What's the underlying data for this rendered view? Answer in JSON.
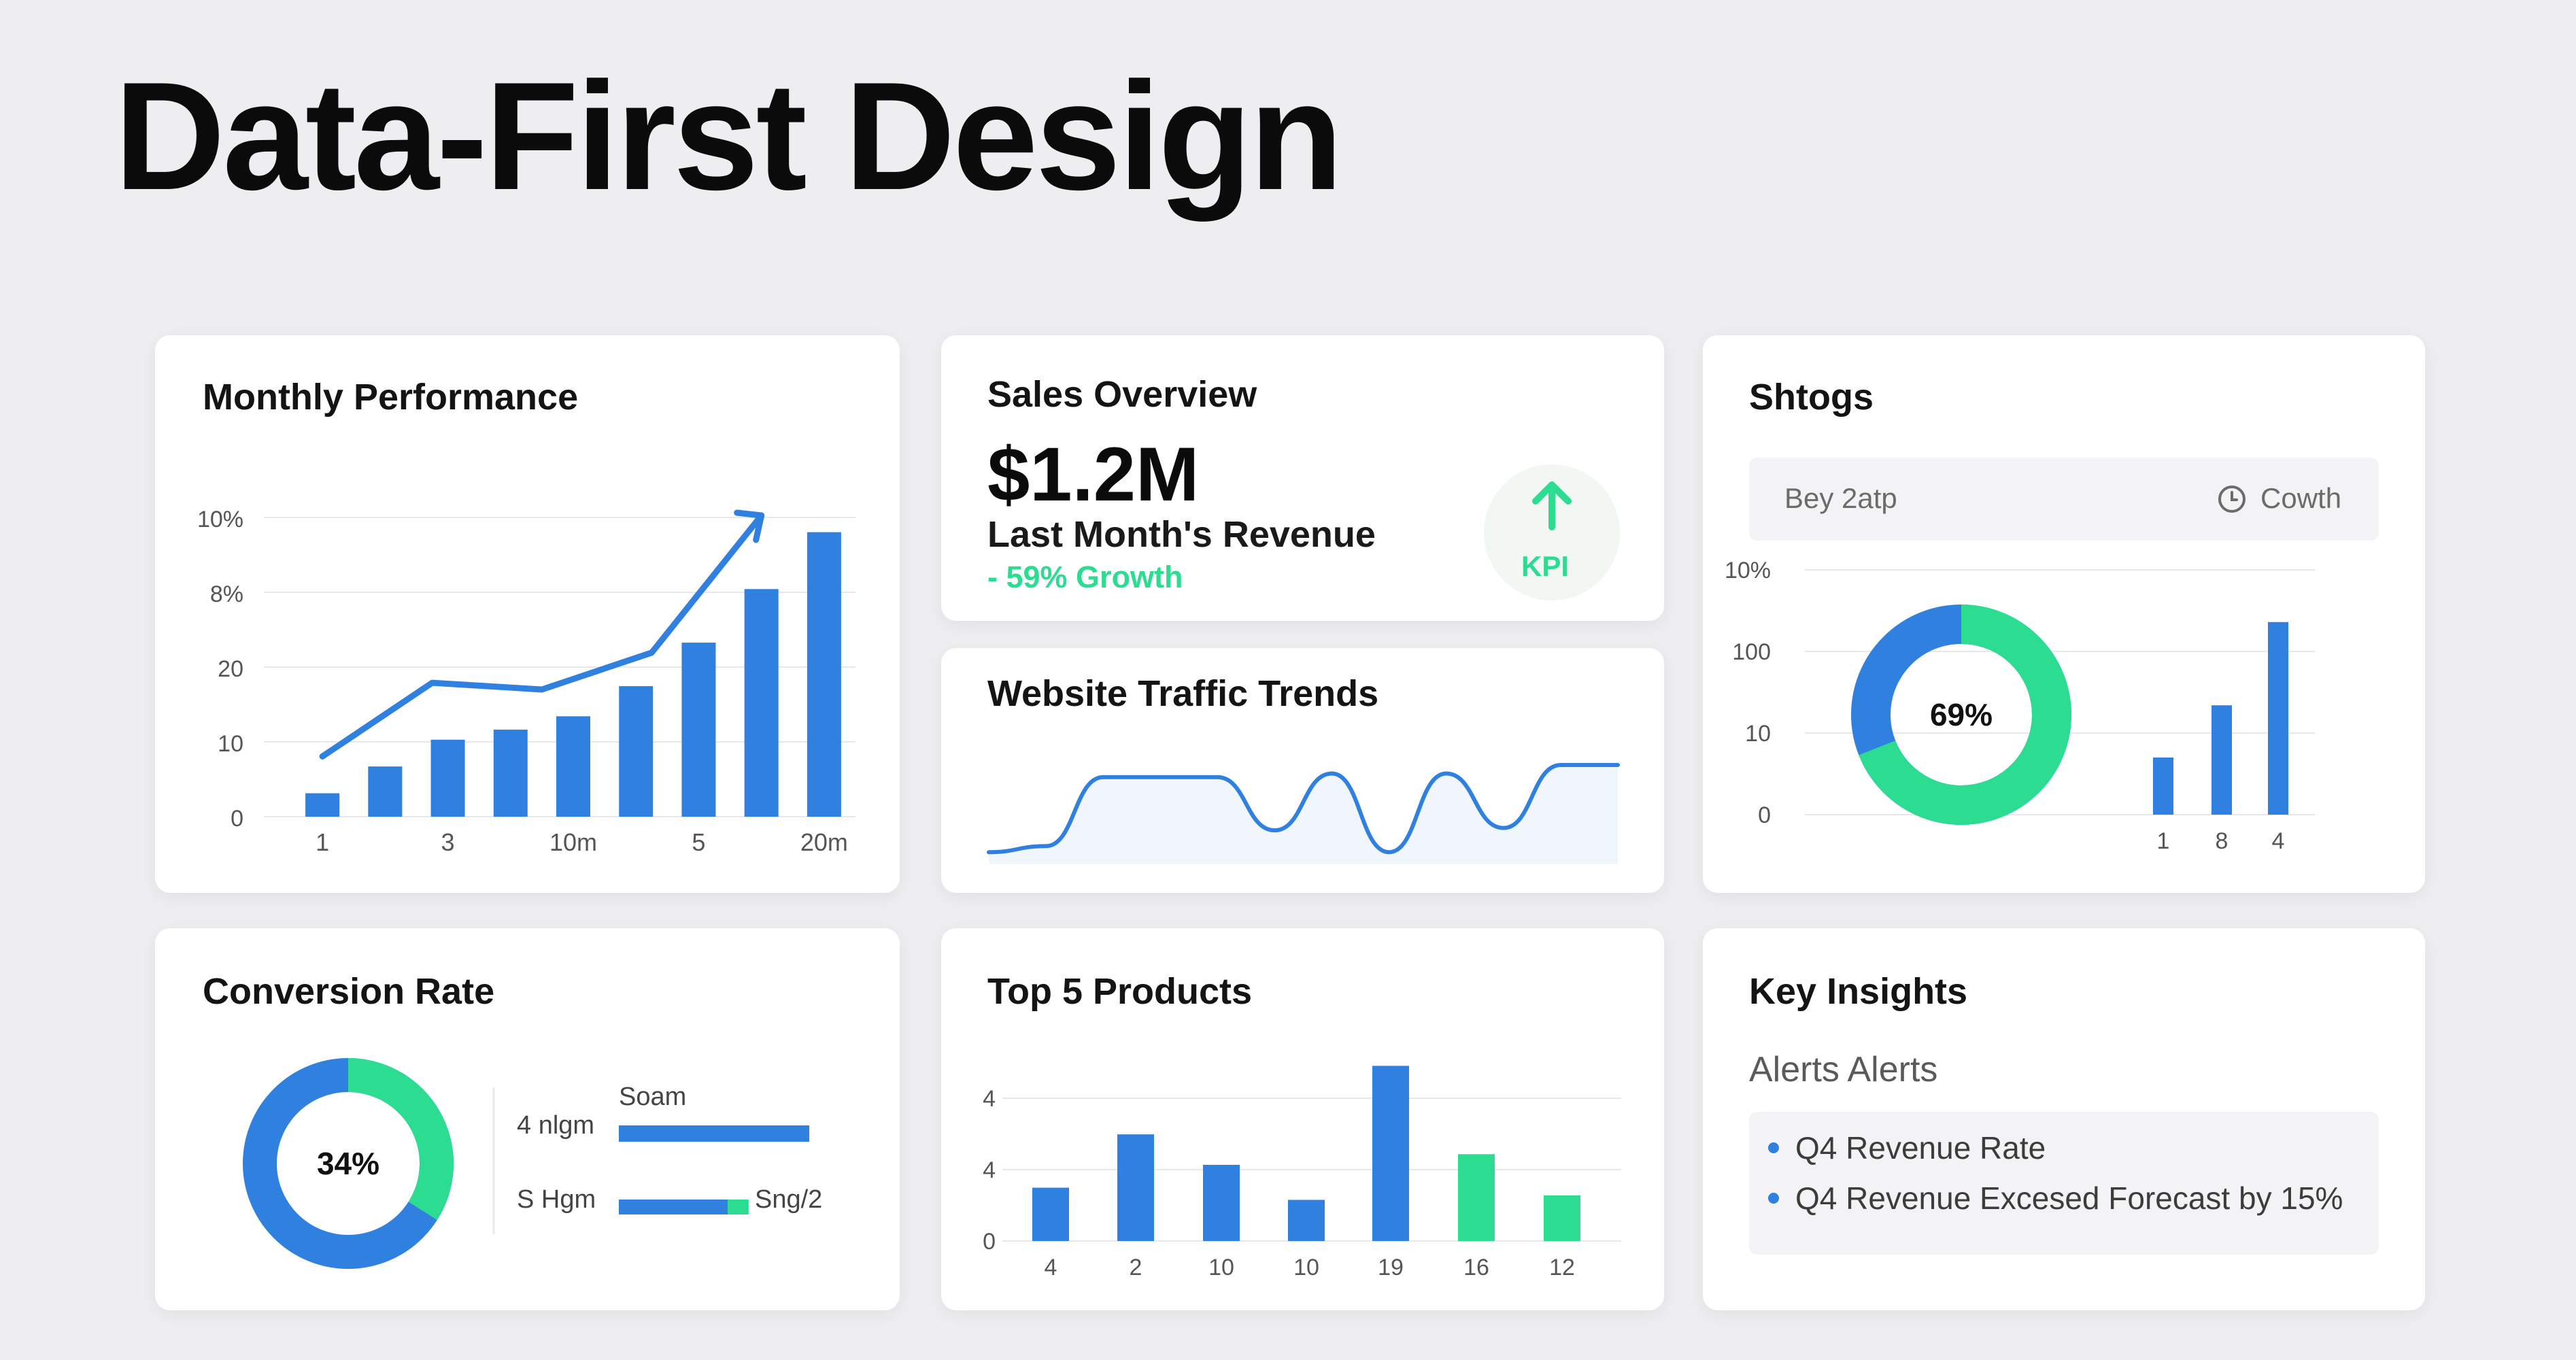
{
  "page": {
    "title": "Data-First Design"
  },
  "colors": {
    "blue": "#2f80df",
    "green": "#2bdc91",
    "grid": "#e8e8ec",
    "background": "#eeeef0"
  },
  "monthly": {
    "title": "Monthly Performance",
    "y_ticks": [
      "0",
      "10",
      "20",
      "8%",
      "10%"
    ],
    "x_ticks": [
      "1",
      "3",
      "10m",
      "5",
      "20m"
    ],
    "chart_data": {
      "type": "bar",
      "bar_values": [
        0.35,
        0.75,
        1.15,
        1.3,
        1.5,
        1.95,
        2.6,
        3.4,
        4.25
      ],
      "trend_values": [
        0.9,
        2.0,
        1.9,
        2.45,
        4.5
      ],
      "ylim": [
        0,
        4.5
      ]
    },
    "trend_icon": "arrow-up-right-icon"
  },
  "sales": {
    "title": "Sales Overview",
    "value": "$1.2M",
    "subtitle": "Last Month's Revenue",
    "growth": "- 59% Growth",
    "badge_label": "KPI",
    "badge_icon": "arrow-up-icon"
  },
  "traffic": {
    "title": "Website Traffic Trends",
    "chart_data": {
      "type": "line",
      "values": [
        0.1,
        0.15,
        0.72,
        0.72,
        0.72,
        0.28,
        0.75,
        0.1,
        0.75,
        0.3,
        0.82,
        0.82
      ]
    }
  },
  "shtogs": {
    "title": "Shtogs",
    "dropdown_label": "Bey 2atp",
    "dropdown_right_label": "Cowth",
    "dropdown_icon": "clock-icon",
    "y_ticks": [
      "0",
      "10",
      "100",
      "10%"
    ],
    "x_ticks": [
      "1",
      "8",
      "4"
    ],
    "donut_label": "69%",
    "donut_value": 0.69,
    "chart_data": {
      "type": "bar",
      "values": [
        0.35,
        0.67,
        1.18
      ],
      "ylim": [
        0,
        1.5
      ]
    }
  },
  "conversion": {
    "title": "Conversion Rate",
    "donut_label": "34%",
    "donut_value": 0.34,
    "legend_top_label": "Soam",
    "row1_label": "4 nlgm",
    "row2_label": "S Hgm",
    "row2_right_label": "Sng/2",
    "row1_fill": 1.0,
    "row2_fill": 0.6,
    "row2_green_fill": 0.11
  },
  "products": {
    "title": "Top 5 Products",
    "y_ticks": [
      "0",
      "4",
      "4"
    ],
    "chart_data": {
      "type": "bar",
      "categories": [
        "4",
        "2",
        "10",
        "10",
        "19",
        "16",
        "12"
      ],
      "values": [
        0.35,
        0.7,
        0.5,
        0.27,
        1.15,
        0.57,
        0.3
      ],
      "highlight": [
        false,
        false,
        false,
        false,
        false,
        true,
        true
      ],
      "ylim": [
        0,
        1.25
      ]
    }
  },
  "insights": {
    "title": "Key Insights",
    "subtitle": "Alerts Alerts",
    "items": [
      "Q4 Revenue Rate",
      "Q4 Revenue Excesed Forecast by 15%"
    ]
  }
}
